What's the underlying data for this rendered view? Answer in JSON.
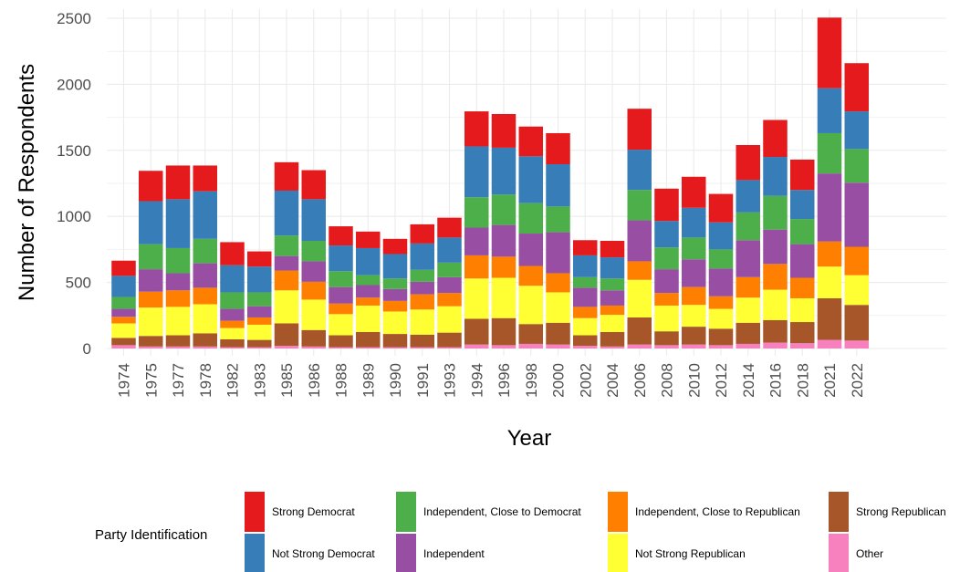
{
  "chart_data": {
    "type": "bar",
    "stacked": true,
    "xlabel": "Year",
    "ylabel": "Number of Respondents",
    "ylim": [
      0,
      2500
    ],
    "yticks": [
      "0",
      "500",
      "1000",
      "1500",
      "2000",
      "2500"
    ],
    "grid": true,
    "legend_title": "Party Identification",
    "legend_position": "bottom",
    "categories": [
      "1974",
      "1975",
      "1977",
      "1978",
      "1982",
      "1983",
      "1985",
      "1986",
      "1988",
      "1989",
      "1990",
      "1991",
      "1993",
      "1994",
      "1996",
      "1998",
      "2000",
      "2002",
      "2004",
      "2006",
      "2008",
      "2010",
      "2012",
      "2014",
      "2016",
      "2018",
      "2021",
      "2022"
    ],
    "series": [
      {
        "name": "Other",
        "color": "#F781BF",
        "values": [
          25,
          15,
          15,
          15,
          10,
          10,
          20,
          15,
          10,
          10,
          10,
          10,
          10,
          30,
          25,
          35,
          30,
          20,
          15,
          30,
          25,
          30,
          25,
          35,
          45,
          40,
          65,
          60
        ]
      },
      {
        "name": "Strong Republican",
        "color": "#A65628",
        "values": [
          55,
          80,
          85,
          100,
          60,
          55,
          170,
          125,
          90,
          115,
          100,
          95,
          110,
          195,
          205,
          150,
          165,
          80,
          110,
          205,
          105,
          135,
          125,
          160,
          170,
          160,
          315,
          270
        ]
      },
      {
        "name": "Not Strong Republican",
        "color": "#FFFF33",
        "values": [
          110,
          215,
          215,
          220,
          85,
          115,
          250,
          230,
          160,
          200,
          170,
          190,
          200,
          305,
          305,
          290,
          230,
          130,
          130,
          285,
          195,
          165,
          150,
          190,
          230,
          180,
          240,
          225
        ]
      },
      {
        "name": "Independent, Close to Republican",
        "color": "#FF7F00",
        "values": [
          50,
          120,
          125,
          125,
          55,
          55,
          150,
          135,
          80,
          60,
          80,
          115,
          100,
          175,
          160,
          150,
          145,
          85,
          70,
          140,
          95,
          135,
          95,
          155,
          195,
          155,
          190,
          215
        ]
      },
      {
        "name": "Independent",
        "color": "#984EA3",
        "values": [
          60,
          170,
          130,
          185,
          90,
          85,
          110,
          155,
          125,
          95,
          90,
          95,
          120,
          210,
          240,
          245,
          310,
          145,
          115,
          310,
          180,
          210,
          210,
          280,
          260,
          255,
          515,
          485
        ]
      },
      {
        "name": "Independent, Close to Democrat",
        "color": "#4DAF4A",
        "values": [
          90,
          190,
          190,
          185,
          125,
          105,
          155,
          155,
          120,
          75,
          80,
          90,
          110,
          230,
          230,
          230,
          195,
          80,
          90,
          230,
          165,
          165,
          145,
          210,
          255,
          190,
          305,
          255
        ]
      },
      {
        "name": "Not Strong Democrat",
        "color": "#377EB8",
        "values": [
          160,
          325,
          370,
          360,
          205,
          195,
          340,
          315,
          195,
          205,
          185,
          200,
          190,
          385,
          355,
          355,
          320,
          165,
          160,
          305,
          200,
          225,
          205,
          245,
          295,
          220,
          340,
          285
        ]
      },
      {
        "name": "Strong Democrat",
        "color": "#E41A1C",
        "values": [
          115,
          230,
          255,
          195,
          175,
          115,
          215,
          220,
          145,
          125,
          115,
          145,
          150,
          265,
          255,
          225,
          235,
          115,
          125,
          310,
          245,
          235,
          215,
          265,
          280,
          230,
          535,
          365
        ]
      }
    ],
    "legend_order": [
      "Strong Democrat",
      "Not Strong Democrat",
      "Independent, Close to Democrat",
      "Independent",
      "Independent, Close to Republican",
      "Not Strong Republican",
      "Strong Republican",
      "Other"
    ]
  }
}
